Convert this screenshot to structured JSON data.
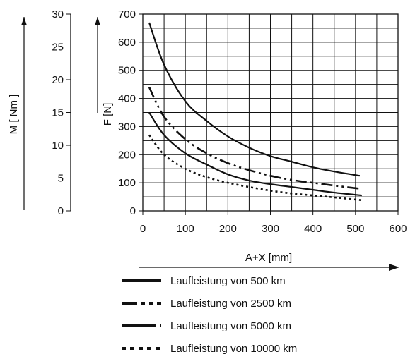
{
  "chart_data": {
    "type": "line",
    "title": "",
    "xlabel": "A+X [mm]",
    "ylabel": "F [N]",
    "ylabel_secondary": "M [ Nm ]",
    "xlim": [
      0,
      600
    ],
    "ylim": [
      0,
      700
    ],
    "ylim_secondary": [
      0,
      30
    ],
    "x_ticks": [
      "0",
      "100",
      "200",
      "300",
      "400",
      "500",
      "600"
    ],
    "y_ticks": [
      "0",
      "100",
      "200",
      "300",
      "400",
      "500",
      "600",
      "700"
    ],
    "y_secondary_ticks": [
      "0",
      "5",
      "10",
      "15",
      "20",
      "25",
      "30"
    ],
    "grid": true,
    "legend_position": "bottom",
    "series": [
      {
        "name": "Laufleistung von 500 km",
        "style": "solid",
        "x": [
          15,
          50,
          100,
          150,
          200,
          250,
          300,
          350,
          400,
          450,
          510
        ],
        "y": [
          670,
          520,
          390,
          320,
          265,
          225,
          195,
          175,
          155,
          140,
          125
        ]
      },
      {
        "name": "Laufleistung von 2500 km",
        "style": "dash-dot",
        "x": [
          15,
          50,
          100,
          150,
          200,
          250,
          300,
          350,
          400,
          450,
          515
        ],
        "y": [
          440,
          335,
          255,
          205,
          170,
          145,
          125,
          110,
          100,
          90,
          78
        ]
      },
      {
        "name": "Laufleistung von 5000 km",
        "style": "solid",
        "x": [
          15,
          50,
          100,
          150,
          200,
          250,
          300,
          350,
          400,
          450,
          515
        ],
        "y": [
          350,
          270,
          205,
          165,
          130,
          108,
          95,
          85,
          75,
          65,
          55
        ]
      },
      {
        "name": "Laufleistung von 10000 km",
        "style": "dotted",
        "x": [
          15,
          50,
          100,
          150,
          200,
          250,
          300,
          350,
          400,
          450,
          515
        ],
        "y": [
          270,
          200,
          150,
          120,
          100,
          85,
          72,
          62,
          55,
          48,
          38
        ]
      }
    ]
  }
}
